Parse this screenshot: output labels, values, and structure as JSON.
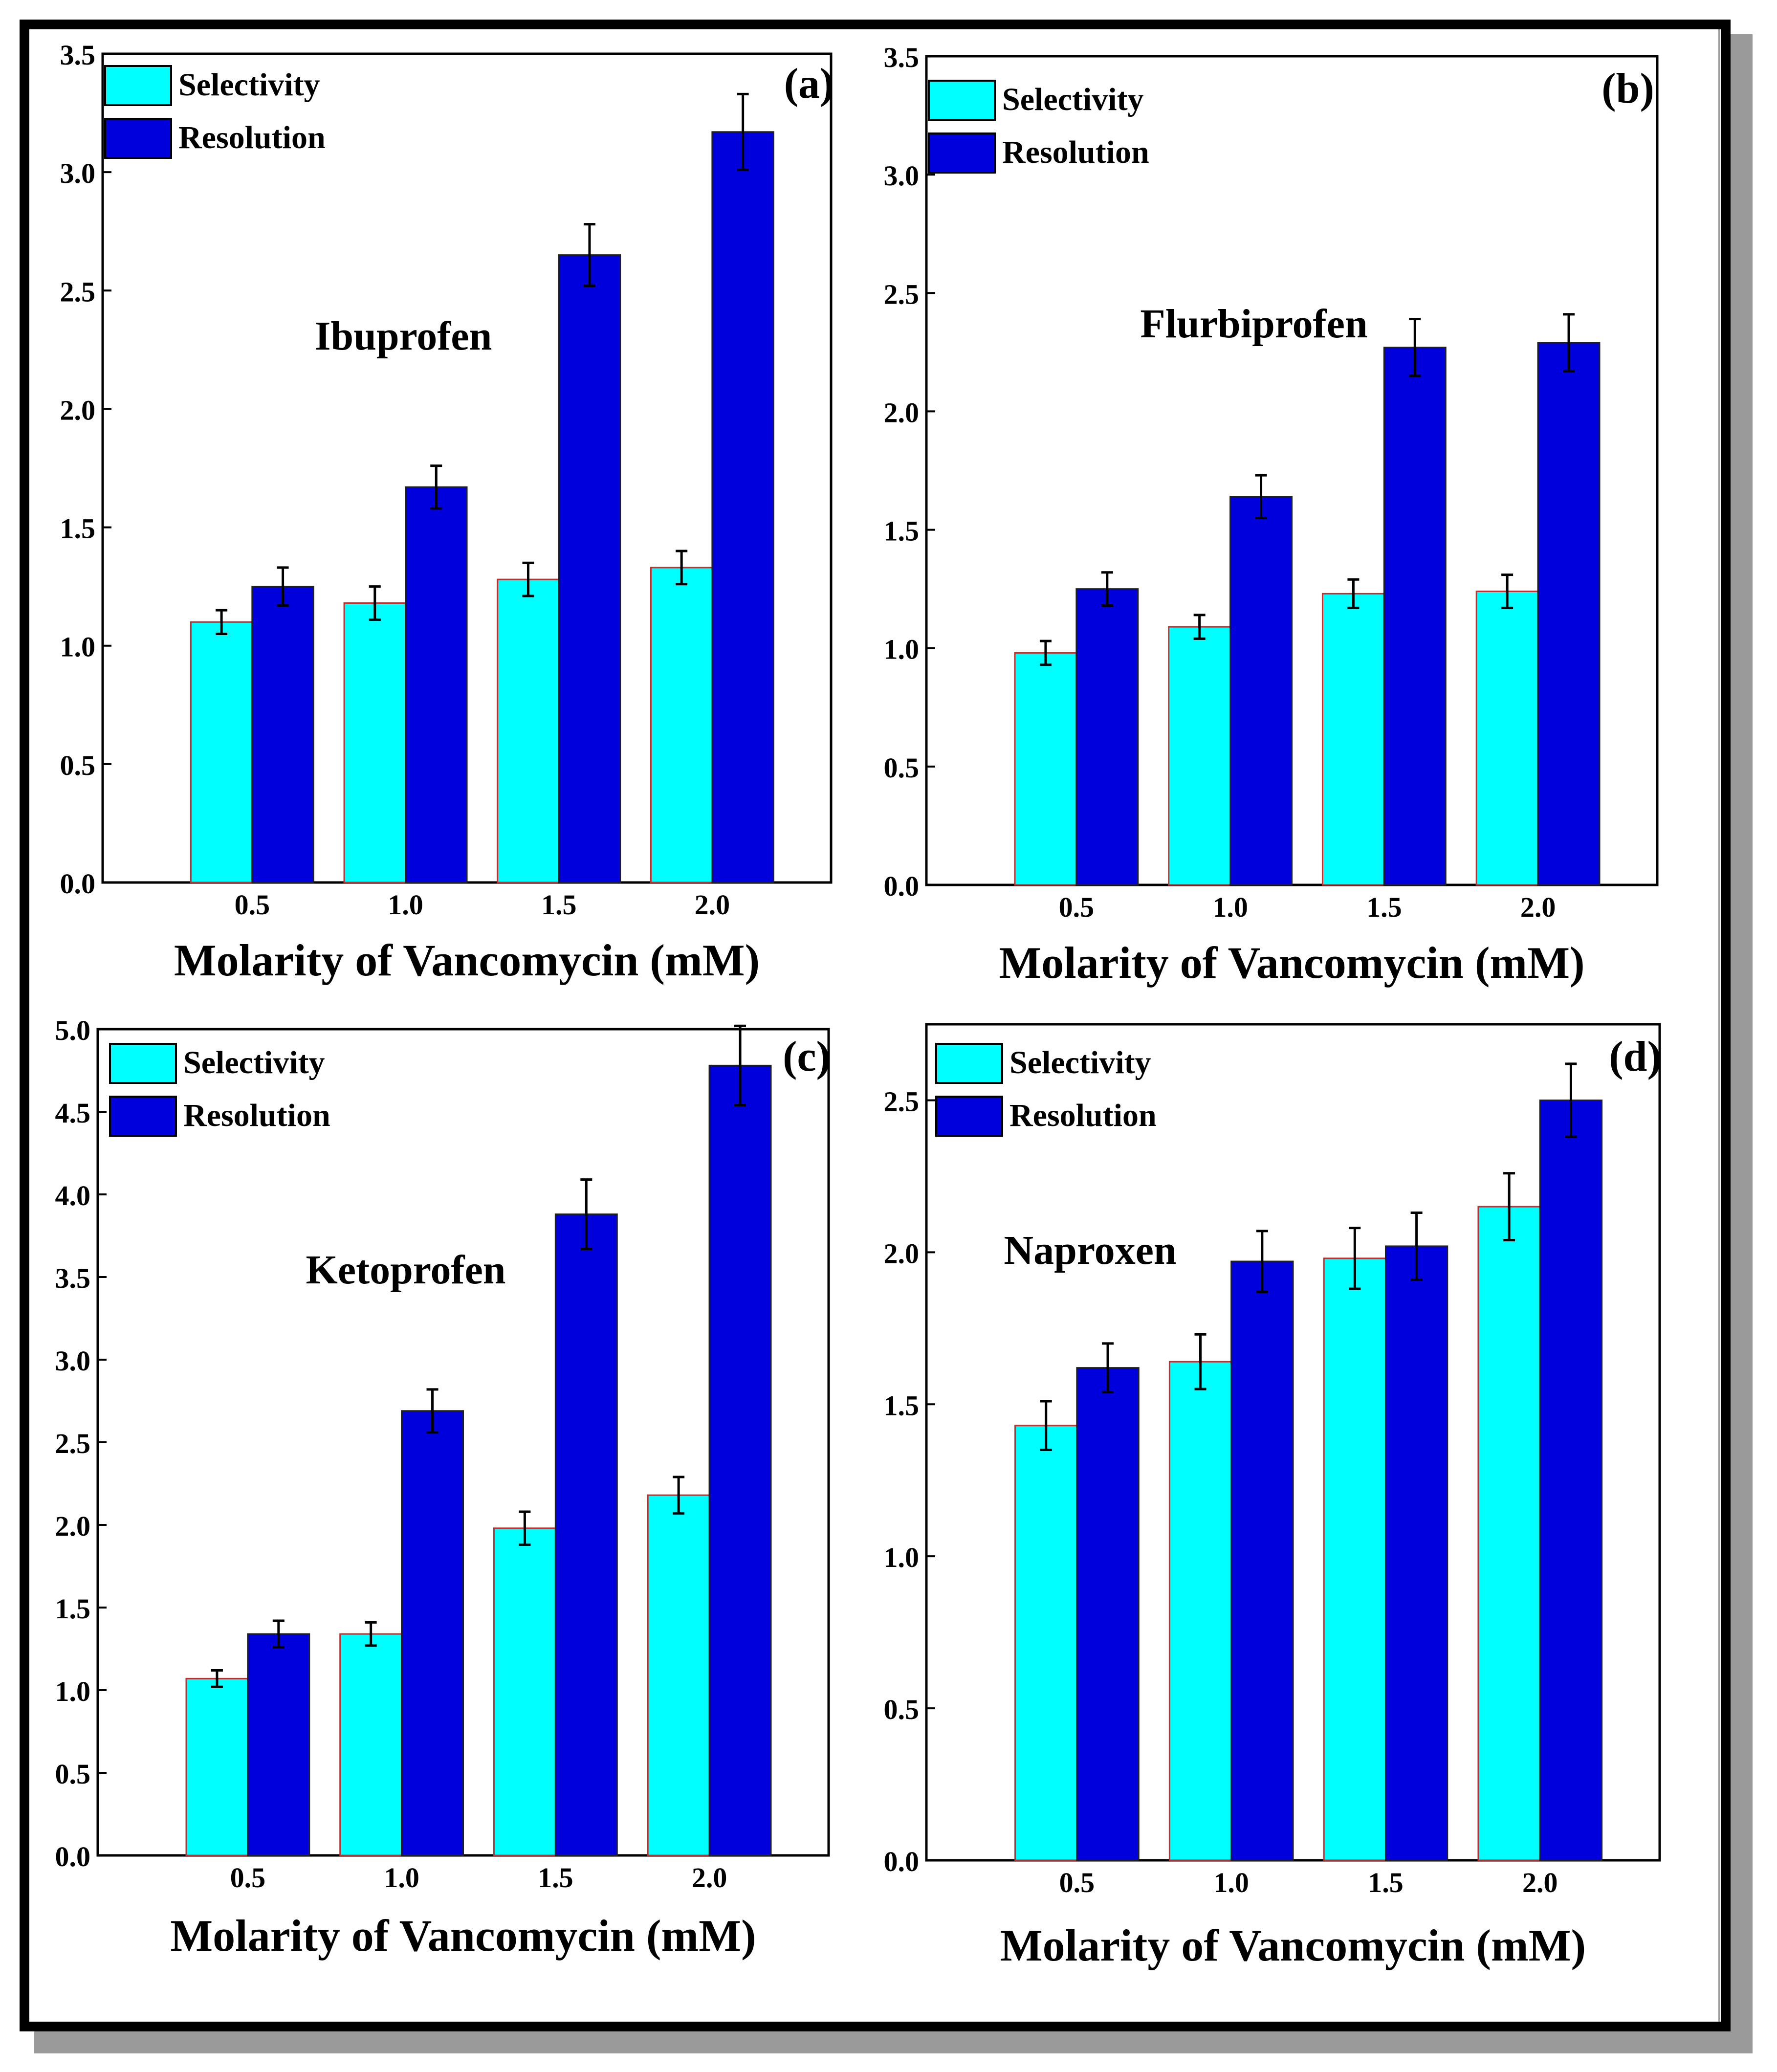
{
  "figure": {
    "colors": {
      "selectivity": "#00ffff",
      "resolution": "#0000dd",
      "axis": "#000000",
      "bar_edge_selectivity": "#c03030",
      "bar_edge_resolution": "#202020"
    }
  },
  "chart_data": [
    {
      "type": "bar",
      "panel_tag": "(a)",
      "drug": "Ibuprofen",
      "categories": [
        "0.5",
        "1.0",
        "1.5",
        "2.0"
      ],
      "series": [
        {
          "name": "Selectivity",
          "values": [
            1.1,
            1.18,
            1.28,
            1.33
          ],
          "errors": [
            0.05,
            0.07,
            0.07,
            0.07
          ]
        },
        {
          "name": "Resolution",
          "values": [
            1.25,
            1.67,
            2.65,
            3.17
          ],
          "errors": [
            0.08,
            0.09,
            0.13,
            0.16
          ]
        }
      ],
      "yticks": [
        "0.0",
        "0.5",
        "1.0",
        "1.5",
        "2.0",
        "2.5",
        "3.0",
        "3.5"
      ],
      "ylim": [
        0,
        3.5
      ],
      "xlabel": "Molarity of Vancomycin (mM)",
      "ylabel": "",
      "legend": "top-left"
    },
    {
      "type": "bar",
      "panel_tag": "(b)",
      "drug": "Flurbiprofen",
      "categories": [
        "0.5",
        "1.0",
        "1.5",
        "2.0"
      ],
      "series": [
        {
          "name": "Selectivity",
          "values": [
            0.98,
            1.09,
            1.23,
            1.24
          ],
          "errors": [
            0.05,
            0.05,
            0.06,
            0.07
          ]
        },
        {
          "name": "Resolution",
          "values": [
            1.25,
            1.64,
            2.27,
            2.29
          ],
          "errors": [
            0.07,
            0.09,
            0.12,
            0.12
          ]
        }
      ],
      "yticks": [
        "0.0",
        "0.5",
        "1.0",
        "1.5",
        "2.0",
        "2.5",
        "3.0",
        "3.5"
      ],
      "ylim": [
        0,
        3.5
      ],
      "xlabel": "Molarity of Vancomycin (mM)",
      "ylabel": "",
      "legend": "top-left"
    },
    {
      "type": "bar",
      "panel_tag": "(c)",
      "drug": "Ketoprofen",
      "categories": [
        "0.5",
        "1.0",
        "1.5",
        "2.0"
      ],
      "series": [
        {
          "name": "Selectivity",
          "values": [
            1.07,
            1.34,
            1.98,
            2.18
          ],
          "errors": [
            0.05,
            0.07,
            0.1,
            0.11
          ]
        },
        {
          "name": "Resolution",
          "values": [
            1.34,
            2.69,
            3.88,
            4.78
          ],
          "errors": [
            0.08,
            0.13,
            0.21,
            0.24
          ]
        }
      ],
      "yticks": [
        "0.0",
        "0.5",
        "1.0",
        "1.5",
        "2.0",
        "2.5",
        "3.0",
        "3.5",
        "4.0",
        "4.5",
        "5.0"
      ],
      "ylim": [
        0,
        5.0
      ],
      "xlabel": "Molarity of Vancomycin (mM)",
      "ylabel": "",
      "legend": "top-left"
    },
    {
      "type": "bar",
      "panel_tag": "(d)",
      "drug": "Naproxen",
      "categories": [
        "0.5",
        "1.0",
        "1.5",
        "2.0"
      ],
      "series": [
        {
          "name": "Selectivity",
          "values": [
            1.43,
            1.64,
            1.98,
            2.15
          ],
          "errors": [
            0.08,
            0.09,
            0.1,
            0.11
          ]
        },
        {
          "name": "Resolution",
          "values": [
            1.62,
            1.97,
            2.02,
            2.5
          ],
          "errors": [
            0.08,
            0.1,
            0.11,
            0.12
          ]
        }
      ],
      "yticks": [
        "0.0",
        "0.5",
        "1.0",
        "1.5",
        "2.0",
        "2.5"
      ],
      "ylim": [
        0,
        2.75
      ],
      "xlabel": "Molarity of Vancomycin (mM)",
      "ylabel": "",
      "legend": "top-left"
    }
  ]
}
